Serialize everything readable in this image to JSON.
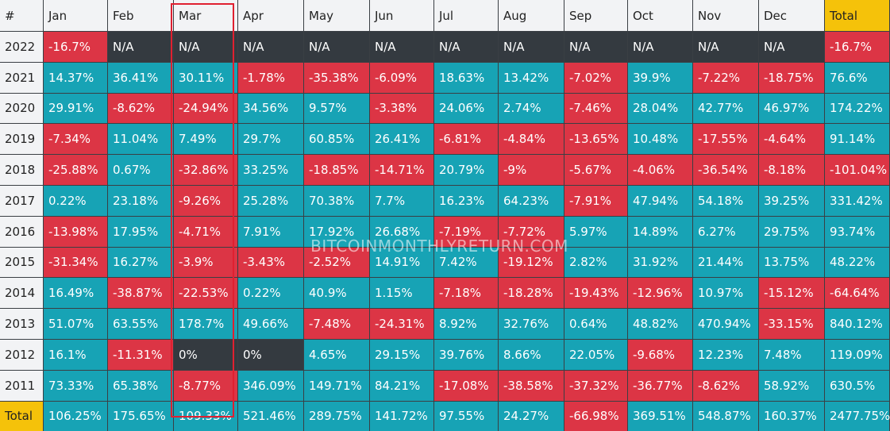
{
  "chart_data": {
    "type": "table",
    "columns": [
      "#",
      "Jan",
      "Feb",
      "Mar",
      "Apr",
      "May",
      "Jun",
      "Jul",
      "Aug",
      "Sep",
      "Oct",
      "Nov",
      "Dec",
      "Total"
    ],
    "rows": [
      {
        "year": "2022",
        "values": [
          "-16.7%",
          "N/A",
          "N/A",
          "N/A",
          "N/A",
          "N/A",
          "N/A",
          "N/A",
          "N/A",
          "N/A",
          "N/A",
          "N/A",
          "-16.7%"
        ]
      },
      {
        "year": "2021",
        "values": [
          "14.37%",
          "36.41%",
          "30.11%",
          "-1.78%",
          "-35.38%",
          "-6.09%",
          "18.63%",
          "13.42%",
          "-7.02%",
          "39.9%",
          "-7.22%",
          "-18.75%",
          "76.6%"
        ]
      },
      {
        "year": "2020",
        "values": [
          "29.91%",
          "-8.62%",
          "-24.94%",
          "34.56%",
          "9.57%",
          "-3.38%",
          "24.06%",
          "2.74%",
          "-7.46%",
          "28.04%",
          "42.77%",
          "46.97%",
          "174.22%"
        ]
      },
      {
        "year": "2019",
        "values": [
          "-7.34%",
          "11.04%",
          "7.49%",
          "29.7%",
          "60.85%",
          "26.41%",
          "-6.81%",
          "-4.84%",
          "-13.65%",
          "10.48%",
          "-17.55%",
          "-4.64%",
          "91.14%"
        ]
      },
      {
        "year": "2018",
        "values": [
          "-25.88%",
          "0.67%",
          "-32.86%",
          "33.25%",
          "-18.85%",
          "-14.71%",
          "20.79%",
          "-9%",
          "-5.67%",
          "-4.06%",
          "-36.54%",
          "-8.18%",
          "-101.04%"
        ]
      },
      {
        "year": "2017",
        "values": [
          "0.22%",
          "23.18%",
          "-9.26%",
          "25.28%",
          "70.38%",
          "7.7%",
          "16.23%",
          "64.23%",
          "-7.91%",
          "47.94%",
          "54.18%",
          "39.25%",
          "331.42%"
        ]
      },
      {
        "year": "2016",
        "values": [
          "-13.98%",
          "17.95%",
          "-4.71%",
          "7.91%",
          "17.92%",
          "26.68%",
          "-7.19%",
          "-7.72%",
          "5.97%",
          "14.89%",
          "6.27%",
          "29.75%",
          "93.74%"
        ]
      },
      {
        "year": "2015",
        "values": [
          "-31.34%",
          "16.27%",
          "-3.9%",
          "-3.43%",
          "-2.52%",
          "14.91%",
          "7.42%",
          "-19.12%",
          "2.82%",
          "31.92%",
          "21.44%",
          "13.75%",
          "48.22%"
        ]
      },
      {
        "year": "2014",
        "values": [
          "16.49%",
          "-38.87%",
          "-22.53%",
          "0.22%",
          "40.9%",
          "1.15%",
          "-7.18%",
          "-18.28%",
          "-19.43%",
          "-12.96%",
          "10.97%",
          "-15.12%",
          "-64.64%"
        ]
      },
      {
        "year": "2013",
        "values": [
          "51.07%",
          "63.55%",
          "178.7%",
          "49.66%",
          "-7.48%",
          "-24.31%",
          "8.92%",
          "32.76%",
          "0.64%",
          "48.82%",
          "470.94%",
          "-33.15%",
          "840.12%"
        ]
      },
      {
        "year": "2012",
        "values": [
          "16.1%",
          "-11.31%",
          "0%",
          "0%",
          "4.65%",
          "29.15%",
          "39.76%",
          "8.66%",
          "22.05%",
          "-9.68%",
          "12.23%",
          "7.48%",
          "119.09%"
        ]
      },
      {
        "year": "2011",
        "values": [
          "73.33%",
          "65.38%",
          "-8.77%",
          "346.09%",
          "149.71%",
          "84.21%",
          "-17.08%",
          "-38.58%",
          "-37.32%",
          "-36.77%",
          "-8.62%",
          "58.92%",
          "630.5%"
        ]
      },
      {
        "year": "Total",
        "values": [
          "106.25%",
          "175.65%",
          "109.33%",
          "521.46%",
          "289.75%",
          "141.72%",
          "97.55%",
          "24.27%",
          "-66.98%",
          "369.51%",
          "548.87%",
          "160.37%",
          "2477.75%"
        ]
      }
    ],
    "highlighted_column": "Mar",
    "colors": {
      "positive": "#17a3b5",
      "negative": "#dc3545",
      "neutral": "#343a40",
      "header": "#f2f3f5",
      "total": "#f5c20a",
      "highlight_border": "#e02030"
    }
  },
  "watermark": "BITCOINMONTHLYRETURN.COM"
}
